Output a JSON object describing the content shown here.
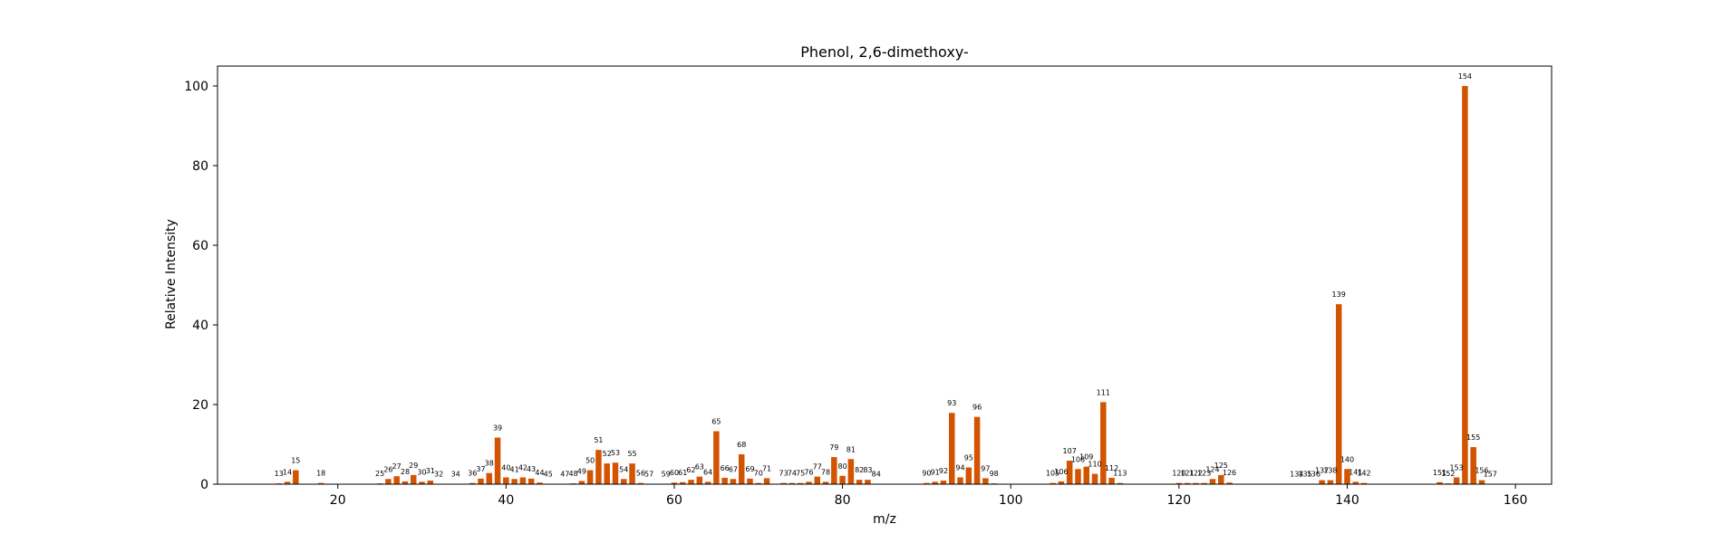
{
  "chart_data": {
    "type": "bar",
    "title": "Phenol, 2,6-dimethoxy-",
    "xlabel": "m/z",
    "ylabel": "Relative Intensity",
    "xlim": [
      5.7,
      164.3
    ],
    "ylim": [
      0,
      105
    ],
    "xticks": [
      20,
      40,
      60,
      80,
      100,
      120,
      140,
      160
    ],
    "yticks": [
      0,
      20,
      40,
      60,
      80,
      100
    ],
    "bar_color": "#d35400",
    "grid": false,
    "legend": "none",
    "x": [
      13,
      14,
      15,
      18,
      25,
      26,
      27,
      28,
      29,
      30,
      31,
      32,
      34,
      36,
      37,
      38,
      39,
      40,
      41,
      42,
      43,
      44,
      45,
      47,
      48,
      49,
      50,
      51,
      52,
      53,
      54,
      55,
      56,
      57,
      59,
      60,
      61,
      62,
      63,
      64,
      65,
      66,
      67,
      68,
      69,
      70,
      71,
      73,
      74,
      75,
      76,
      77,
      78,
      79,
      80,
      81,
      82,
      83,
      84,
      90,
      91,
      92,
      93,
      94,
      95,
      96,
      97,
      98,
      105,
      106,
      107,
      108,
      109,
      110,
      111,
      112,
      113,
      120,
      121,
      122,
      123,
      124,
      125,
      126,
      134,
      135,
      136,
      137,
      138,
      139,
      140,
      141,
      142,
      151,
      152,
      153,
      154,
      155,
      156,
      157
    ],
    "values": [
      0.2,
      0.6,
      3.5,
      0.3,
      0.2,
      1.3,
      2.0,
      0.7,
      2.3,
      0.6,
      0.9,
      0.1,
      0.1,
      0.3,
      1.4,
      2.8,
      11.7,
      1.7,
      1.3,
      1.7,
      1.4,
      0.4,
      0.1,
      0.1,
      0.2,
      0.8,
      3.5,
      8.6,
      5.2,
      5.4,
      1.3,
      5.2,
      0.3,
      0.1,
      0.1,
      0.4,
      0.5,
      1.1,
      1.9,
      0.6,
      13.3,
      1.6,
      1.3,
      7.5,
      1.4,
      0.3,
      1.5,
      0.3,
      0.3,
      0.3,
      0.6,
      1.9,
      0.6,
      6.8,
      2.1,
      6.3,
      1.1,
      1.1,
      0.1,
      0.3,
      0.6,
      0.9,
      17.9,
      1.7,
      4.2,
      16.9,
      1.5,
      0.2,
      0.3,
      0.7,
      5.9,
      3.8,
      4.4,
      2.6,
      20.6,
      1.6,
      0.3,
      0.3,
      0.3,
      0.3,
      0.3,
      1.3,
      2.3,
      0.4,
      0.1,
      0.1,
      0.1,
      1.0,
      1.0,
      45.2,
      3.8,
      0.6,
      0.3,
      0.5,
      0.2,
      1.7,
      100,
      9.3,
      1.0,
      0.1
    ]
  }
}
